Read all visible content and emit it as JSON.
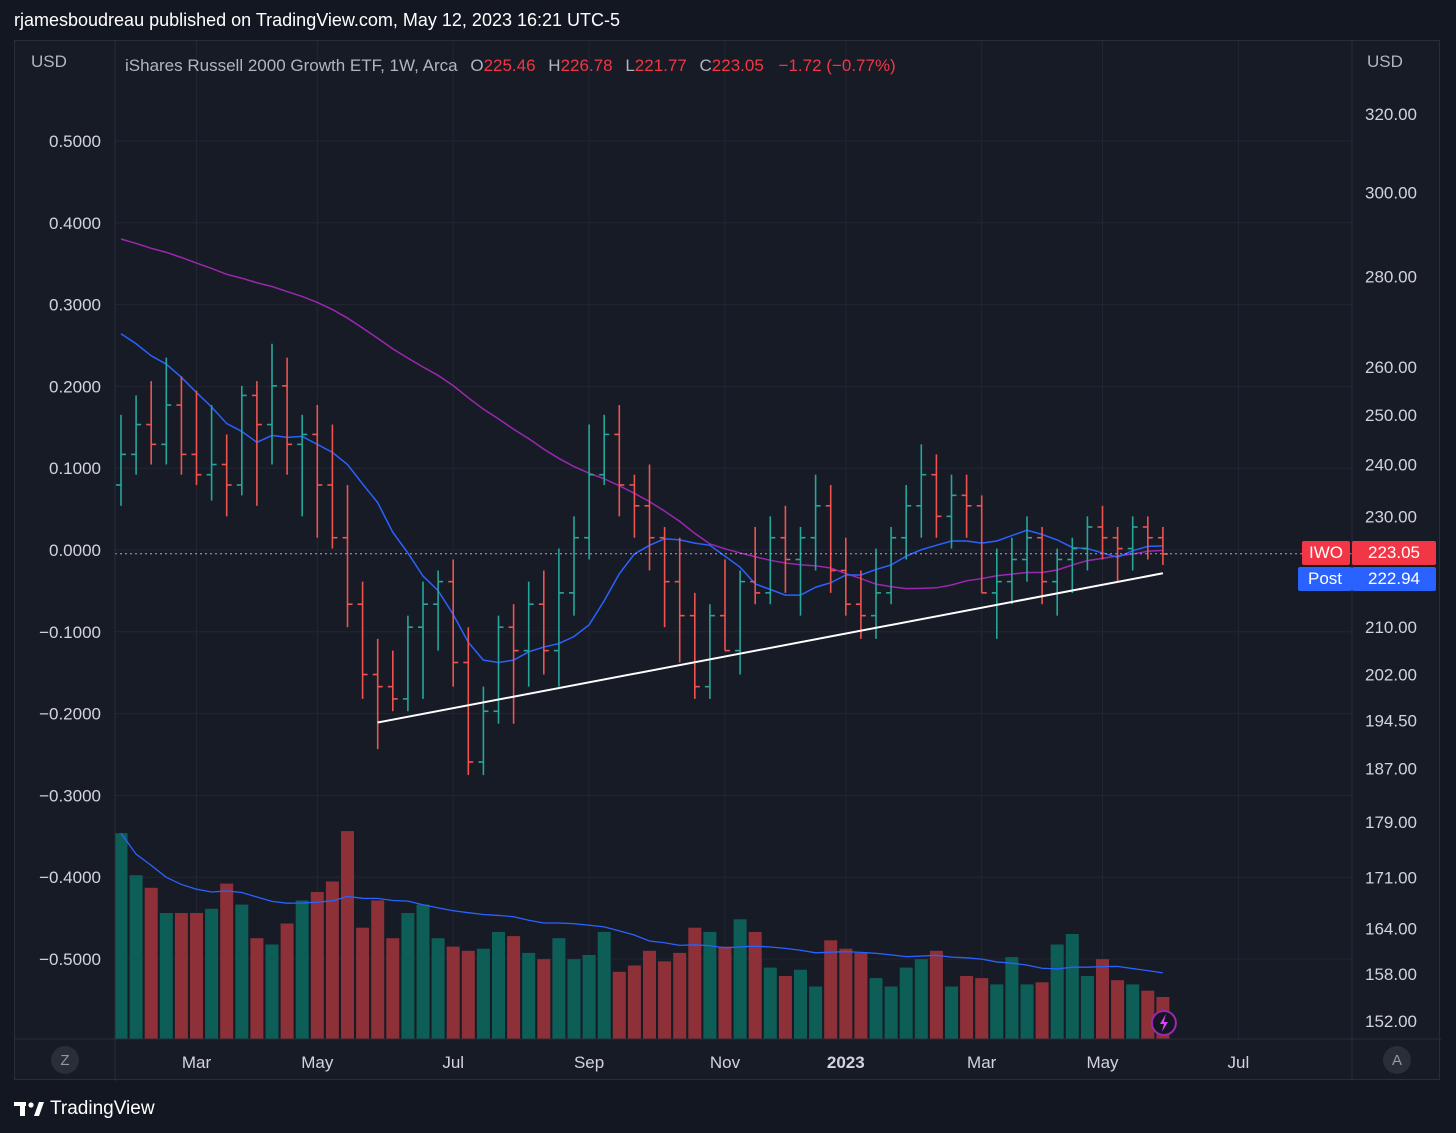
{
  "header": {
    "text": "rjamesboudreau published on TradingView.com, May 12, 2023 16:21 UTC-5"
  },
  "footer": {
    "brand": "TradingView"
  },
  "buttons": {
    "left": "Z",
    "right": "A"
  },
  "tags": {
    "iwo_label": "IWO",
    "iwo_value": "223.05",
    "post_label": "Post",
    "post_value": "222.94"
  },
  "colors": {
    "up": "#26a69a",
    "down": "#ef5350",
    "vol_up": "#0e5e58",
    "vol_down": "#8e3038",
    "ma_fast": "#2962ff",
    "ma_slow": "#9c27b0",
    "tag_red": "#f23645",
    "tag_blue": "#2962ff"
  },
  "chart_data": {
    "type": "ohlc",
    "title": "iShares Russell 2000 Growth ETF, 1W, Arca",
    "legend": {
      "open_label": "O",
      "open": "225.46",
      "high_label": "H",
      "high": "226.78",
      "low_label": "L",
      "low": "221.77",
      "close_label": "C",
      "close": "223.05",
      "change": "−1.72 (−0.77%)"
    },
    "left_axis": {
      "unit": "USD",
      "ticks": [
        "0.5000",
        "0.4000",
        "0.3000",
        "0.2000",
        "0.1000",
        "0.0000",
        "−0.1000",
        "−0.2000",
        "−0.3000",
        "−0.4000",
        "−0.5000"
      ],
      "values": [
        0.5,
        0.4,
        0.3,
        0.2,
        0.1,
        0,
        -0.1,
        -0.2,
        -0.3,
        -0.4,
        -0.5
      ]
    },
    "right_axis": {
      "unit": "USD",
      "ticks": [
        "320.00",
        "300.00",
        "280.00",
        "260.00",
        "250.00",
        "240.00",
        "230.00",
        "210.00",
        "202.00",
        "194.50",
        "187.00",
        "179.00",
        "171.00",
        "164.00",
        "158.00",
        "152.00"
      ],
      "values": [
        320,
        300,
        280,
        260,
        250,
        240,
        230,
        210,
        202,
        194.5,
        187,
        179,
        171,
        164,
        158,
        152
      ]
    },
    "x_labels": [
      {
        "label": "Mar",
        "week": 5
      },
      {
        "label": "May",
        "week": 13
      },
      {
        "label": "Jul",
        "week": 22
      },
      {
        "label": "Sep",
        "week": 31
      },
      {
        "label": "Nov",
        "week": 40
      },
      {
        "label": "2023",
        "week": 48,
        "bold": true
      },
      {
        "label": "Mar",
        "week": 57
      },
      {
        "label": "May",
        "week": 65
      },
      {
        "label": "Jul",
        "week": 74
      }
    ],
    "week_count": 82,
    "last_price": 223.05,
    "post_price": 222.94,
    "bars": [
      [
        236,
        250,
        232,
        242
      ],
      [
        242,
        254,
        238,
        248
      ],
      [
        248,
        257,
        240,
        244
      ],
      [
        244,
        262,
        240,
        252
      ],
      [
        252,
        258,
        238,
        242
      ],
      [
        242,
        255,
        236,
        238
      ],
      [
        238,
        252,
        233,
        240
      ],
      [
        240,
        246,
        230,
        236
      ],
      [
        236,
        256,
        234,
        254
      ],
      [
        254,
        257,
        232,
        248
      ],
      [
        248,
        265,
        240,
        256
      ],
      [
        256,
        262,
        238,
        244
      ],
      [
        244,
        250,
        230,
        246
      ],
      [
        246,
        252,
        226,
        236
      ],
      [
        236,
        248,
        224,
        226
      ],
      [
        226,
        236,
        210,
        214
      ],
      [
        214,
        218,
        198,
        202
      ],
      [
        202,
        208,
        190,
        200
      ],
      [
        200,
        206,
        196,
        198
      ],
      [
        198,
        212,
        196,
        210
      ],
      [
        210,
        218,
        198,
        214
      ],
      [
        214,
        220,
        206,
        218
      ],
      [
        218,
        222,
        200,
        204
      ],
      [
        204,
        210,
        186,
        188
      ],
      [
        188,
        200,
        186,
        196
      ],
      [
        196,
        212,
        194,
        210
      ],
      [
        210,
        214,
        194,
        206
      ],
      [
        206,
        218,
        200,
        214
      ],
      [
        214,
        220,
        202,
        206
      ],
      [
        206,
        224,
        200,
        216
      ],
      [
        216,
        230,
        212,
        226
      ],
      [
        226,
        248,
        222,
        238
      ],
      [
        238,
        250,
        236,
        246
      ],
      [
        246,
        252,
        230,
        236
      ],
      [
        236,
        238,
        226,
        232
      ],
      [
        232,
        240,
        220,
        226
      ],
      [
        226,
        228,
        210,
        218
      ],
      [
        218,
        226,
        204,
        212
      ],
      [
        212,
        216,
        198,
        200
      ],
      [
        200,
        214,
        198,
        212
      ],
      [
        212,
        222,
        206,
        206
      ],
      [
        206,
        220,
        202,
        218
      ],
      [
        218,
        228,
        214,
        216
      ],
      [
        216,
        230,
        214,
        226
      ],
      [
        226,
        232,
        216,
        222
      ],
      [
        222,
        228,
        212,
        226
      ],
      [
        226,
        238,
        220,
        232
      ],
      [
        232,
        236,
        216,
        220
      ],
      [
        220,
        226,
        212,
        214
      ],
      [
        214,
        220,
        208,
        212
      ],
      [
        212,
        224,
        208,
        216
      ],
      [
        216,
        228,
        214,
        226
      ],
      [
        226,
        236,
        222,
        232
      ],
      [
        232,
        244,
        226,
        238
      ],
      [
        238,
        242,
        226,
        230
      ],
      [
        230,
        238,
        224,
        234
      ],
      [
        234,
        238,
        226,
        232
      ],
      [
        232,
        234,
        216,
        216
      ],
      [
        216,
        224,
        208,
        218
      ],
      [
        218,
        226,
        214,
        222
      ],
      [
        222,
        230,
        218,
        226
      ],
      [
        226,
        228,
        214,
        218
      ],
      [
        218,
        224,
        212,
        222
      ],
      [
        222,
        226,
        216,
        224
      ],
      [
        224,
        230,
        220,
        228
      ],
      [
        228,
        232,
        222,
        226
      ],
      [
        226,
        228,
        218,
        224
      ],
      [
        224,
        230,
        220,
        228
      ],
      [
        228,
        230,
        222,
        226
      ],
      [
        226,
        228,
        221,
        223
      ]
    ],
    "volumes": [
      0.98,
      0.78,
      0.72,
      0.6,
      0.6,
      0.6,
      0.62,
      0.74,
      0.64,
      0.48,
      0.45,
      0.55,
      0.66,
      0.7,
      0.75,
      0.99,
      0.53,
      0.66,
      0.48,
      0.6,
      0.64,
      0.48,
      0.44,
      0.42,
      0.43,
      0.51,
      0.49,
      0.41,
      0.38,
      0.48,
      0.38,
      0.4,
      0.51,
      0.32,
      0.35,
      0.42,
      0.37,
      0.41,
      0.53,
      0.51,
      0.44,
      0.57,
      0.51,
      0.34,
      0.3,
      0.33,
      0.25,
      0.47,
      0.43,
      0.41,
      0.29,
      0.25,
      0.34,
      0.38,
      0.42,
      0.25,
      0.3,
      0.29,
      0.26,
      0.39,
      0.26,
      0.27,
      0.45,
      0.5,
      0.3,
      0.38,
      0.28,
      0.26,
      0.23,
      0.2
    ],
    "annotations": [
      {
        "type": "trendline",
        "from_week": 17,
        "from_price": 194.2,
        "to_week": 69,
        "to_price": 219.5,
        "color": "#ffffff"
      }
    ]
  }
}
